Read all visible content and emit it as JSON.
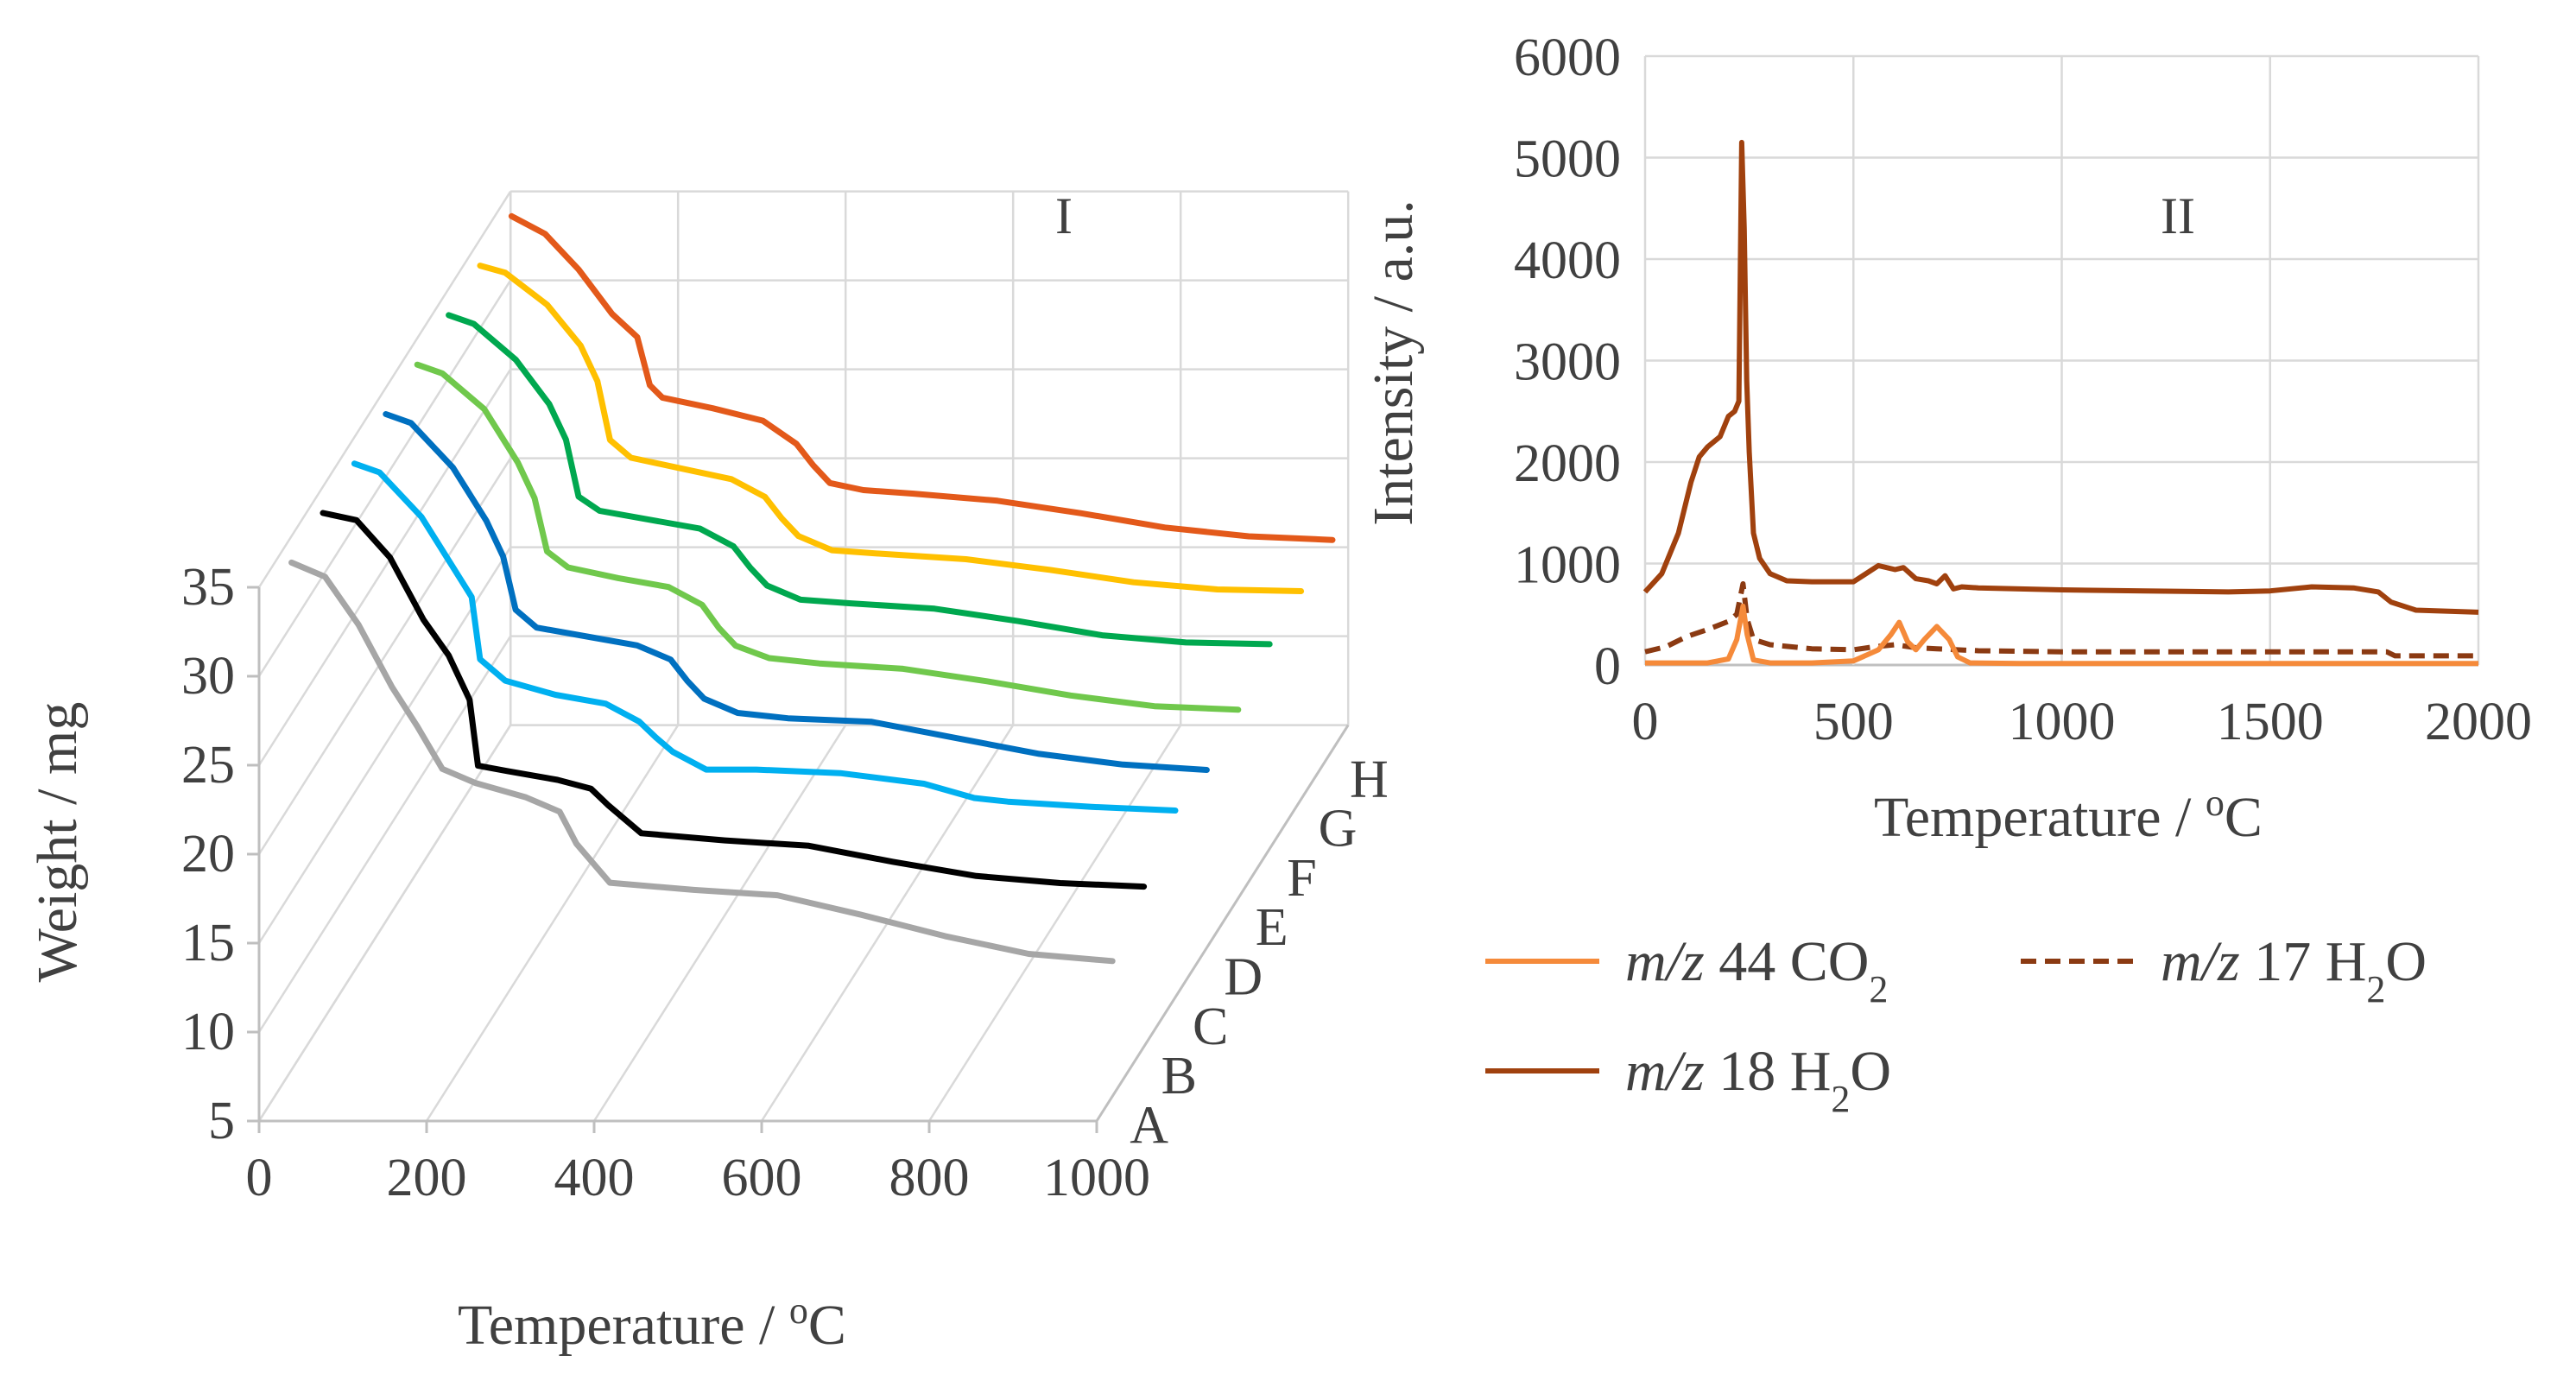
{
  "chart_data": [
    {
      "panel": "I",
      "type": "line",
      "xlabel": "Temperature / oC",
      "ylabel": "Weight / mg",
      "xlim": [
        0,
        1000
      ],
      "ylim": [
        5,
        35
      ],
      "xticks": [
        "0",
        "200",
        "400",
        "600",
        "800",
        "1000"
      ],
      "yticks": [
        "5",
        "10",
        "15",
        "20",
        "25",
        "30",
        "35"
      ],
      "grid": true,
      "series": [
        {
          "name": "A",
          "color": "#a6a6a6",
          "x": [
            20,
            60,
            100,
            140,
            170,
            200,
            240,
            300,
            340,
            360,
            400,
            500,
            600,
            700,
            800,
            900,
            1000
          ],
          "y": [
            35.0,
            34.2,
            31.5,
            28.0,
            25.8,
            23.4,
            22.6,
            21.8,
            21.0,
            19.2,
            17.0,
            16.6,
            16.3,
            15.2,
            14.0,
            13.0,
            12.6
          ]
        },
        {
          "name": "B",
          "color": "#000000",
          "x": [
            20,
            60,
            100,
            140,
            170,
            195,
            205,
            240,
            300,
            340,
            360,
            400,
            500,
            600,
            700,
            800,
            900,
            1000
          ],
          "y": [
            35.0,
            34.6,
            32.5,
            29.0,
            27.0,
            24.5,
            20.8,
            20.5,
            20.0,
            19.5,
            18.6,
            17.0,
            16.6,
            16.3,
            15.4,
            14.6,
            14.2,
            14.0
          ]
        },
        {
          "name": "C",
          "color": "#00b0f0",
          "x": [
            20,
            50,
            100,
            140,
            160,
            170,
            200,
            260,
            320,
            360,
            380,
            400,
            440,
            500,
            600,
            700,
            760,
            800,
            900,
            1000
          ],
          "y": [
            35.0,
            34.5,
            32.0,
            29.0,
            27.5,
            24.0,
            22.8,
            22.0,
            21.5,
            20.5,
            19.6,
            18.8,
            17.8,
            17.8,
            17.6,
            17.0,
            16.2,
            16.0,
            15.7,
            15.5
          ]
        },
        {
          "name": "D",
          "color": "#0070c0",
          "x": [
            20,
            50,
            100,
            140,
            160,
            175,
            200,
            260,
            320,
            360,
            380,
            400,
            440,
            500,
            600,
            700,
            800,
            900,
            1000
          ],
          "y": [
            35.0,
            34.5,
            32.0,
            29.0,
            27.0,
            24.0,
            23.0,
            22.5,
            22.0,
            21.2,
            20.0,
            19.0,
            18.2,
            17.9,
            17.7,
            16.8,
            15.9,
            15.3,
            15.0
          ]
        },
        {
          "name": "E",
          "color": "#70c84c",
          "x": [
            20,
            50,
            100,
            140,
            160,
            175,
            200,
            260,
            320,
            360,
            380,
            400,
            440,
            500,
            600,
            700,
            800,
            900,
            1000
          ],
          "y": [
            35.0,
            34.5,
            32.5,
            29.5,
            27.5,
            24.5,
            23.6,
            23.0,
            22.5,
            21.5,
            20.2,
            19.2,
            18.5,
            18.2,
            17.9,
            17.2,
            16.4,
            15.8,
            15.6
          ]
        },
        {
          "name": "F",
          "color": "#00a84f",
          "x": [
            20,
            50,
            100,
            140,
            160,
            175,
            200,
            260,
            320,
            360,
            380,
            400,
            440,
            500,
            600,
            700,
            800,
            900,
            1000
          ],
          "y": [
            35.0,
            34.5,
            32.5,
            30.0,
            28.0,
            24.8,
            24.0,
            23.5,
            23.0,
            22.0,
            20.8,
            19.8,
            19.0,
            18.8,
            18.5,
            17.8,
            17.0,
            16.6,
            16.5
          ]
        },
        {
          "name": "G",
          "color": "#ffc000",
          "x": [
            20,
            50,
            100,
            140,
            160,
            175,
            200,
            260,
            320,
            360,
            380,
            400,
            440,
            500,
            600,
            700,
            800,
            900,
            1000
          ],
          "y": [
            35.0,
            34.6,
            32.8,
            30.5,
            28.5,
            25.2,
            24.2,
            23.6,
            23.0,
            22.0,
            20.8,
            19.8,
            19.0,
            18.8,
            18.5,
            17.9,
            17.2,
            16.8,
            16.7
          ]
        },
        {
          "name": "H",
          "color": "#e3591a",
          "x": [
            20,
            60,
            100,
            140,
            170,
            185,
            200,
            260,
            320,
            360,
            380,
            400,
            440,
            500,
            600,
            700,
            800,
            900,
            1000
          ],
          "y": [
            35.0,
            34.0,
            32.0,
            29.5,
            28.2,
            25.5,
            24.8,
            24.2,
            23.5,
            22.2,
            21.0,
            20.0,
            19.6,
            19.4,
            19.0,
            18.3,
            17.5,
            17.0,
            16.8
          ]
        }
      ]
    },
    {
      "panel": "II",
      "type": "line",
      "xlabel": "Temperature / oC",
      "ylabel": "Intensity / a.u.",
      "xlim": [
        0,
        2000
      ],
      "ylim": [
        0,
        6000
      ],
      "xticks": [
        "0",
        "500",
        "1000",
        "1500",
        "2000"
      ],
      "yticks": [
        "0",
        "1000",
        "2000",
        "3000",
        "4000",
        "5000",
        "6000"
      ],
      "grid": true,
      "legend_position": "bottom",
      "series": [
        {
          "name_parts": [
            "m/z",
            "44 CO",
            "2",
            ""
          ],
          "color": "#f58a3a",
          "dash": false,
          "x": [
            0,
            150,
            200,
            220,
            235,
            245,
            260,
            300,
            400,
            500,
            560,
            590,
            610,
            630,
            650,
            670,
            700,
            730,
            750,
            780,
            900,
            1200,
            1600,
            1800,
            2000
          ],
          "y": [
            20,
            20,
            60,
            250,
            580,
            300,
            50,
            20,
            20,
            40,
            150,
            300,
            420,
            230,
            150,
            250,
            380,
            250,
            80,
            20,
            15,
            15,
            15,
            15,
            15
          ]
        },
        {
          "name_parts": [
            "m/z",
            "17 H",
            "2",
            "O"
          ],
          "color": "#8b3a12",
          "dash": true,
          "x": [
            0,
            50,
            100,
            150,
            200,
            220,
            235,
            245,
            260,
            300,
            400,
            500,
            550,
            600,
            650,
            700,
            800,
            1000,
            1400,
            1700,
            1780,
            1800,
            2000
          ],
          "y": [
            130,
            180,
            280,
            350,
            430,
            500,
            800,
            450,
            250,
            200,
            160,
            150,
            180,
            200,
            170,
            160,
            140,
            130,
            130,
            130,
            130,
            90,
            90
          ]
        },
        {
          "name_parts": [
            "m/z",
            "18 H",
            "2",
            "O"
          ],
          "color": "#a0410e",
          "dash": false,
          "x": [
            0,
            40,
            80,
            110,
            130,
            150,
            180,
            200,
            215,
            225,
            232,
            238,
            244,
            250,
            260,
            275,
            300,
            340,
            400,
            500,
            530,
            560,
            600,
            620,
            650,
            680,
            700,
            720,
            740,
            760,
            800,
            1000,
            1200,
            1400,
            1500,
            1600,
            1700,
            1760,
            1790,
            1850,
            2000
          ],
          "y": [
            720,
            900,
            1300,
            1800,
            2050,
            2150,
            2250,
            2450,
            2500,
            2600,
            5150,
            4300,
            2800,
            2100,
            1300,
            1050,
            900,
            830,
            820,
            820,
            900,
            980,
            940,
            960,
            850,
            830,
            800,
            880,
            750,
            770,
            760,
            740,
            730,
            720,
            730,
            770,
            760,
            720,
            620,
            540,
            520
          ]
        }
      ]
    }
  ]
}
